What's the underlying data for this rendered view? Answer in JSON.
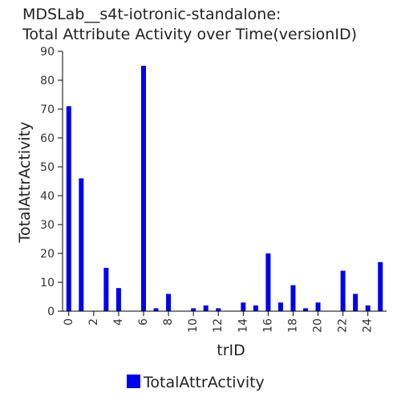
{
  "chart_data": {
    "type": "bar",
    "title_lines": [
      "MDSLab__s4t-iotronic-standalone:",
      "Total Attribute Activity over Time(versionID)"
    ],
    "xlabel": "trID",
    "ylabel": "TotalAttrActivity",
    "ylim": [
      0,
      90
    ],
    "xlim": [
      -0.5,
      25.5
    ],
    "yticks": [
      0,
      10,
      20,
      30,
      40,
      50,
      60,
      70,
      80,
      90
    ],
    "xticks": [
      0,
      2,
      4,
      6,
      8,
      10,
      12,
      14,
      16,
      18,
      20,
      22,
      24
    ],
    "grid": false,
    "legend_position": "bottom-center",
    "bar_color": "#0000ee",
    "series": [
      {
        "name": "TotalAttrActivity",
        "x": [
          0,
          1,
          3,
          4,
          6,
          7,
          8,
          10,
          11,
          12,
          14,
          15,
          16,
          17,
          18,
          19,
          20,
          22,
          23,
          24,
          25
        ],
        "values": [
          71,
          46,
          15,
          8,
          85,
          1,
          6,
          1,
          2,
          1,
          3,
          2,
          20,
          3,
          9,
          1,
          3,
          14,
          6,
          2,
          17
        ]
      }
    ]
  }
}
